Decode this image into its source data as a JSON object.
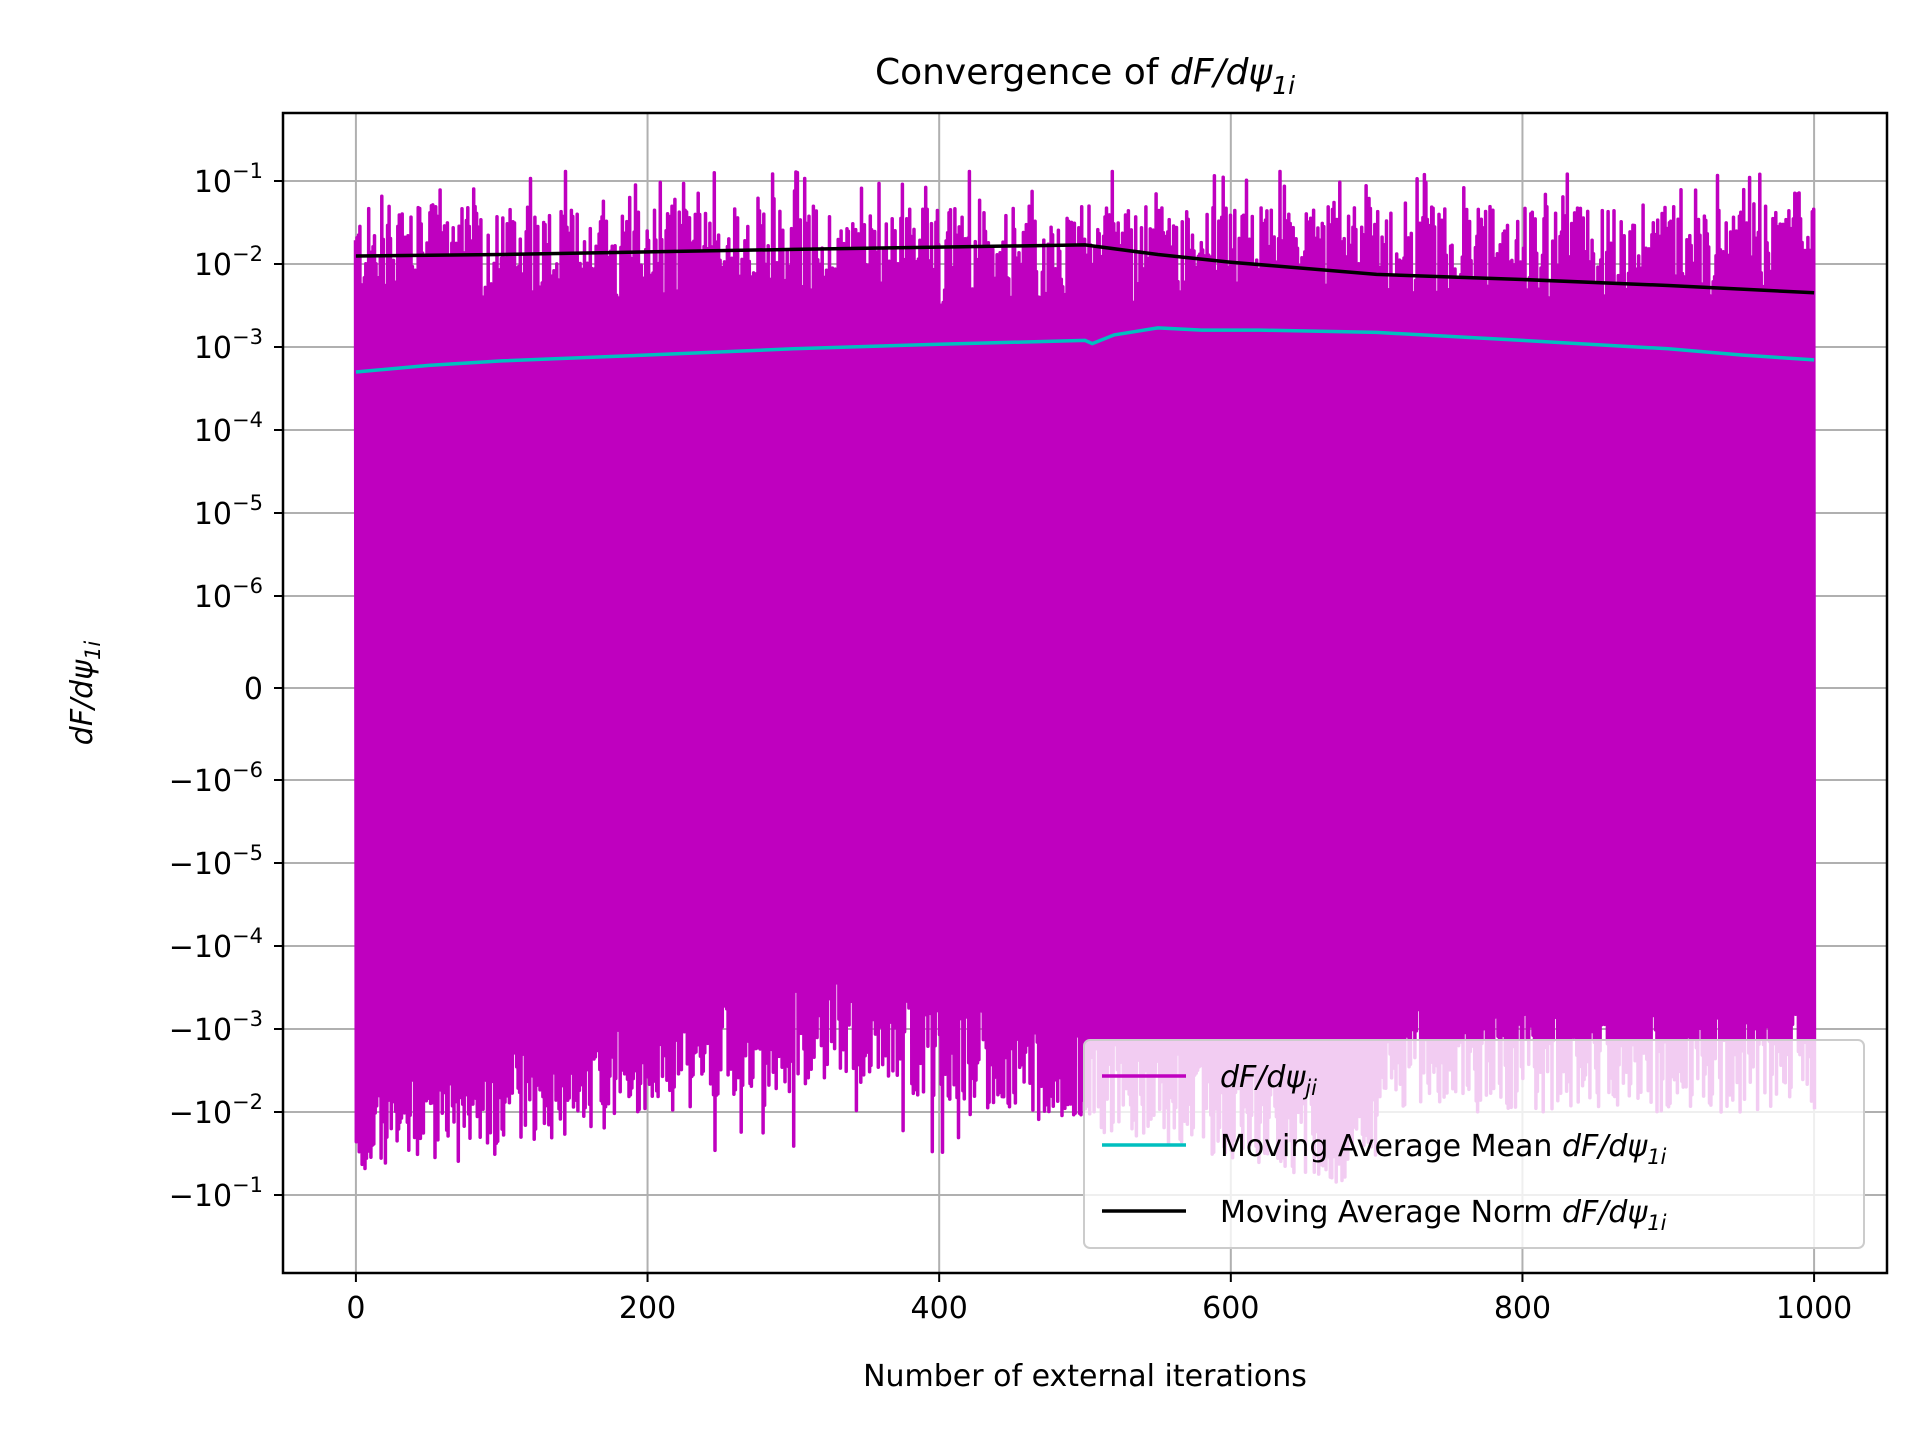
{
  "chart_data": {
    "type": "line",
    "title": "Convergence of dF/dψ1i",
    "title_parts": {
      "prefix": "Convergence of ",
      "math": "dF/dψ",
      "subscript": "1i"
    },
    "xlabel": "Number of external iterations",
    "ylabel": "dF/dψ1i",
    "ylabel_parts": {
      "math": "dF/dψ",
      "subscript": "1i"
    },
    "x_scale": "linear",
    "y_scale": "symlog",
    "y_linthresh": 1e-06,
    "xlim": [
      -50,
      1050
    ],
    "ylim": [
      -1.0,
      1.0
    ],
    "grid": true,
    "legend_position": "lower-right",
    "x_ticks": [
      0,
      200,
      400,
      600,
      800,
      1000
    ],
    "x_tick_labels": [
      "0",
      "200",
      "400",
      "600",
      "800",
      "1000"
    ],
    "y_tick_labels": [
      {
        "value": 0.1,
        "base": "10",
        "exp": "−1"
      },
      {
        "value": 0.01,
        "base": "10",
        "exp": "−2"
      },
      {
        "value": 0.001,
        "base": "10",
        "exp": "−3"
      },
      {
        "value": 0.0001,
        "base": "10",
        "exp": "−4"
      },
      {
        "value": 1e-05,
        "base": "10",
        "exp": "−5"
      },
      {
        "value": 1e-06,
        "base": "10",
        "exp": "−6"
      },
      {
        "value": 0,
        "base": "0",
        "exp": ""
      },
      {
        "value": -1e-06,
        "base": "−10",
        "exp": "−6"
      },
      {
        "value": -1e-05,
        "base": "−10",
        "exp": "−5"
      },
      {
        "value": -0.0001,
        "base": "−10",
        "exp": "−4"
      },
      {
        "value": -0.001,
        "base": "−10",
        "exp": "−3"
      },
      {
        "value": -0.01,
        "base": "−10",
        "exp": "−2"
      },
      {
        "value": -0.1,
        "base": "−10",
        "exp": "−1"
      }
    ],
    "series": [
      {
        "name": "dF/dψji",
        "legend_parts": {
          "prefix": "",
          "math": "dF/dψ",
          "subscript": "ji"
        },
        "color": "#bf00bf",
        "kind": "oscillating",
        "description_values": {
          "x_range": [
            0,
            1000
          ],
          "upper_peak_typical": 0.03,
          "upper_peak_max": 0.13,
          "lower_peak_typical": -0.01,
          "lower_peak_max": -0.15
        }
      },
      {
        "name": "Moving Average Mean dF/dψ1i",
        "legend_parts": {
          "prefix": "Moving Average Mean ",
          "math": "dF/dψ",
          "subscript": "1i"
        },
        "color": "#00bfbf",
        "x": [
          0,
          50,
          100,
          200,
          300,
          400,
          500,
          505,
          520,
          550,
          580,
          620,
          700,
          800,
          900,
          950,
          1000
        ],
        "y": [
          0.0005,
          0.0006,
          0.00068,
          0.0008,
          0.00095,
          0.00108,
          0.0012,
          0.0011,
          0.0014,
          0.0017,
          0.0016,
          0.0016,
          0.0015,
          0.0012,
          0.00095,
          0.0008,
          0.0007
        ]
      },
      {
        "name": "Moving Average Norm dF/dψ1i",
        "legend_parts": {
          "prefix": "Moving Average Norm ",
          "math": "dF/dψ",
          "subscript": "1i"
        },
        "color": "#000000",
        "x": [
          0,
          100,
          200,
          300,
          400,
          500,
          505,
          550,
          600,
          700,
          800,
          900,
          1000
        ],
        "y": [
          0.0125,
          0.013,
          0.014,
          0.015,
          0.016,
          0.017,
          0.0165,
          0.013,
          0.0105,
          0.0075,
          0.0065,
          0.0055,
          0.0045
        ]
      }
    ]
  }
}
